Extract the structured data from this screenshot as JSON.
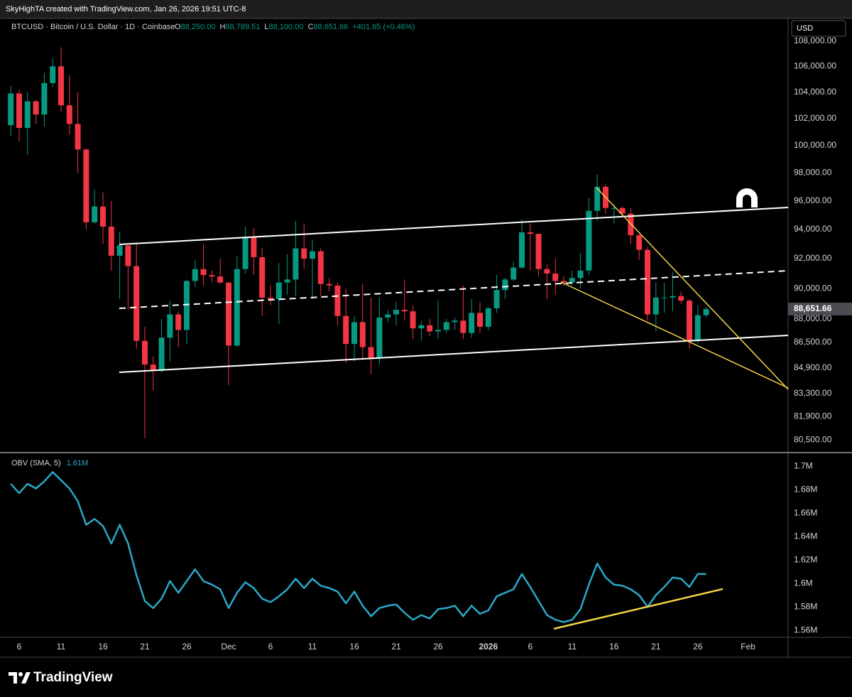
{
  "header": {
    "attribution": "SkyHighTA created with TradingView.com, Jan 26, 2026 19:51 UTC-8"
  },
  "footer": {
    "brand": "TradingView"
  },
  "chart_data": [
    {
      "type": "candlestick",
      "title": "BTCUSD · Bitcoin / U.S. Dollar · 1D · Coinbase",
      "ohlc_legend": [
        {
          "key": "O",
          "value": "88,250.00"
        },
        {
          "key": "H",
          "value": "88,789.51"
        },
        {
          "key": "L",
          "value": "88,100.00"
        },
        {
          "key": "C",
          "value": "88,651.66"
        },
        {
          "value": "+401.65 (+0.46%)"
        }
      ],
      "currency": "USD",
      "last_price_label": "88,651.66",
      "log_scale": true,
      "up_color": "#089981",
      "down_color": "#f23645",
      "categories": [
        null,
        "6",
        null,
        null,
        null,
        null,
        "11",
        null,
        null,
        null,
        null,
        "16",
        null,
        null,
        null,
        null,
        "21",
        null,
        null,
        null,
        null,
        "26",
        null,
        null,
        null,
        null,
        "Dec",
        null,
        null,
        null,
        null,
        "6",
        null,
        null,
        null,
        null,
        "11",
        null,
        null,
        null,
        null,
        "16",
        null,
        null,
        null,
        null,
        "21",
        null,
        null,
        null,
        null,
        "26",
        null,
        null,
        null,
        null,
        null,
        "2026",
        null,
        null,
        null,
        null,
        "6",
        null,
        null,
        null,
        null,
        "11",
        null,
        null,
        null,
        null,
        "16",
        null,
        null,
        null,
        null,
        "21",
        null,
        null,
        null,
        null,
        "26",
        null,
        null,
        null,
        null,
        null,
        "Feb",
        null,
        null,
        null,
        null
      ],
      "open": [
        101500,
        103900,
        101300,
        103300,
        102300,
        104700,
        106000,
        103000,
        101600,
        99700,
        94500,
        95600,
        94200,
        92200,
        92900,
        91500,
        86600,
        85100,
        84700,
        86800,
        88300,
        87300,
        90500,
        91300,
        90900,
        90800,
        90400,
        86300,
        91300,
        93500,
        92100,
        89400,
        89300,
        90400,
        90600,
        92700,
        92000,
        92500,
        90300,
        90200,
        88200,
        86400,
        87800,
        86200,
        85500,
        88100,
        88300,
        88600,
        88500,
        87400,
        87600,
        87200,
        87300,
        87800,
        87900,
        87100,
        88400,
        87500,
        88700,
        89900,
        90600,
        91400,
        93800,
        93700,
        91300,
        91000,
        90500,
        90400,
        90700,
        91200,
        95300,
        97000,
        95500,
        95500,
        95100,
        93600,
        92600,
        88300,
        89400,
        89400,
        89500,
        89200,
        86600,
        88250,
        null,
        null,
        null,
        null,
        null,
        null,
        null,
        null,
        null
      ],
      "high": [
        104500,
        104200,
        104000,
        103400,
        105500,
        106600,
        107500,
        105300,
        104000,
        99800,
        96800,
        96600,
        96000,
        93800,
        92900,
        93100,
        87500,
        85600,
        88000,
        89200,
        88500,
        90600,
        91900,
        93000,
        91200,
        92000,
        90400,
        92200,
        94200,
        94100,
        92700,
        90200,
        91700,
        92300,
        94600,
        94400,
        93300,
        92700,
        90700,
        90400,
        90000,
        88200,
        90300,
        89400,
        89400,
        88600,
        89100,
        90600,
        88900,
        87900,
        88000,
        89200,
        88000,
        88100,
        90200,
        89300,
        89100,
        88800,
        90900,
        90700,
        91800,
        94700,
        94400,
        93700,
        91600,
        92000,
        90800,
        91200,
        92400,
        96200,
        97900,
        97200,
        95800,
        95600,
        95500,
        93700,
        92800,
        90400,
        90400,
        91100,
        89800,
        89300,
        88900,
        88789.51,
        null,
        null,
        null,
        null,
        null,
        null,
        null,
        null,
        null
      ],
      "low": [
        100700,
        100300,
        99300,
        101600,
        101400,
        104400,
        102500,
        100800,
        98000,
        94000,
        94400,
        93000,
        91200,
        89300,
        88600,
        86100,
        80600,
        83500,
        84600,
        85300,
        86200,
        86400,
        90100,
        90200,
        90400,
        90300,
        83800,
        86200,
        91000,
        90900,
        88200,
        88900,
        87700,
        89600,
        89500,
        91300,
        89300,
        89500,
        89800,
        87600,
        85200,
        85300,
        85400,
        84500,
        85100,
        87800,
        87600,
        87900,
        86700,
        86600,
        86900,
        86700,
        87100,
        87300,
        86700,
        86800,
        87100,
        87300,
        88400,
        89300,
        90500,
        91300,
        91200,
        90800,
        89300,
        89600,
        90200,
        90200,
        90000,
        90900,
        94600,
        95100,
        94400,
        95000,
        93000,
        91900,
        87900,
        87200,
        88400,
        88500,
        89000,
        86100,
        86400,
        88100,
        null,
        null,
        null,
        null,
        null,
        null,
        null,
        null,
        null
      ],
      "close": [
        103900,
        101300,
        103300,
        102300,
        104700,
        106000,
        103000,
        101600,
        99700,
        94500,
        95600,
        94200,
        92200,
        92900,
        91500,
        86600,
        85100,
        84700,
        86800,
        88300,
        87300,
        90500,
        91300,
        90900,
        90800,
        90400,
        86300,
        91300,
        93500,
        92100,
        89400,
        89300,
        90400,
        90600,
        92700,
        92000,
        92500,
        90300,
        90200,
        88200,
        86400,
        87800,
        86200,
        85500,
        88100,
        88300,
        88600,
        88500,
        87400,
        87600,
        87200,
        87300,
        87800,
        87900,
        87100,
        88400,
        87500,
        88700,
        89900,
        90600,
        91400,
        93800,
        93700,
        91300,
        91000,
        90500,
        90400,
        90700,
        91200,
        95300,
        97000,
        95500,
        95500,
        95100,
        93600,
        92600,
        88300,
        89400,
        89400,
        89500,
        89200,
        86600,
        88250,
        88651.66,
        null,
        null,
        null,
        null,
        null,
        null,
        null,
        null,
        null
      ],
      "ylim": [
        79800,
        109800
      ],
      "yticks": [
        {
          "value": 108000,
          "label": "108,000.00"
        },
        {
          "value": 106000,
          "label": "106,000.00"
        },
        {
          "value": 104000,
          "label": "104,000.00"
        },
        {
          "value": 102000,
          "label": "102,000.00"
        },
        {
          "value": 100000,
          "label": "100,000.00"
        },
        {
          "value": 98000,
          "label": "98,000.00"
        },
        {
          "value": 96000,
          "label": "96,000.00"
        },
        {
          "value": 94000,
          "label": "94,000.00"
        },
        {
          "value": 92000,
          "label": "92,000.00"
        },
        {
          "value": 90000,
          "label": "90,000.00"
        },
        {
          "value": 88000,
          "label": "88,000.00"
        },
        {
          "value": 86500,
          "label": "86,500.00"
        },
        {
          "value": 84900,
          "label": "84,900.00"
        },
        {
          "value": 83300,
          "label": "83,300.00"
        },
        {
          "value": 81900,
          "label": "81,900.00"
        },
        {
          "value": 80500,
          "label": "80,500.00"
        }
      ]
    },
    {
      "type": "line",
      "title": "OBV (SMA, 5)",
      "last_value_label": "1.61M",
      "color": "#2ba8c8",
      "values": [
        1685000,
        1677000,
        1685000,
        1681000,
        1687000,
        1695000,
        1688000,
        1681000,
        1670000,
        1650000,
        1655000,
        1649000,
        1634000,
        1650000,
        1634000,
        1607000,
        1585000,
        1579000,
        1587000,
        1602000,
        1592000,
        1602000,
        1612000,
        1602000,
        1599000,
        1595000,
        1579000,
        1592000,
        1601000,
        1596000,
        1587000,
        1584000,
        1589000,
        1595000,
        1604000,
        1596000,
        1604000,
        1598000,
        1596000,
        1593000,
        1583000,
        1593000,
        1581000,
        1572000,
        1579000,
        1581000,
        1582000,
        1575000,
        1569000,
        1573000,
        1570000,
        1578000,
        1579000,
        1581000,
        1572000,
        1581000,
        1574000,
        1577000,
        1589000,
        1592000,
        1595000,
        1608000,
        1597000,
        1585000,
        1573000,
        1569000,
        1567000,
        1569000,
        1578000,
        1599000,
        1617000,
        1605000,
        1599000,
        1598000,
        1595000,
        1590000,
        1580000,
        1590000,
        1597000,
        1605000,
        1604000,
        1597000,
        1608000,
        1608000,
        null,
        null,
        null,
        null,
        null,
        null,
        null,
        null,
        null
      ],
      "ylim": [
        1554000,
        1711000
      ],
      "yticks": [
        {
          "value": 1700000,
          "label": "1.7M"
        },
        {
          "value": 1680000,
          "label": "1.68M"
        },
        {
          "value": 1660000,
          "label": "1.66M"
        },
        {
          "value": 1640000,
          "label": "1.64M"
        },
        {
          "value": 1620000,
          "label": "1.62M"
        },
        {
          "value": 1600000,
          "label": "1.6M"
        },
        {
          "value": 1580000,
          "label": "1.58M"
        },
        {
          "value": 1560000,
          "label": "1.56M"
        }
      ]
    }
  ]
}
